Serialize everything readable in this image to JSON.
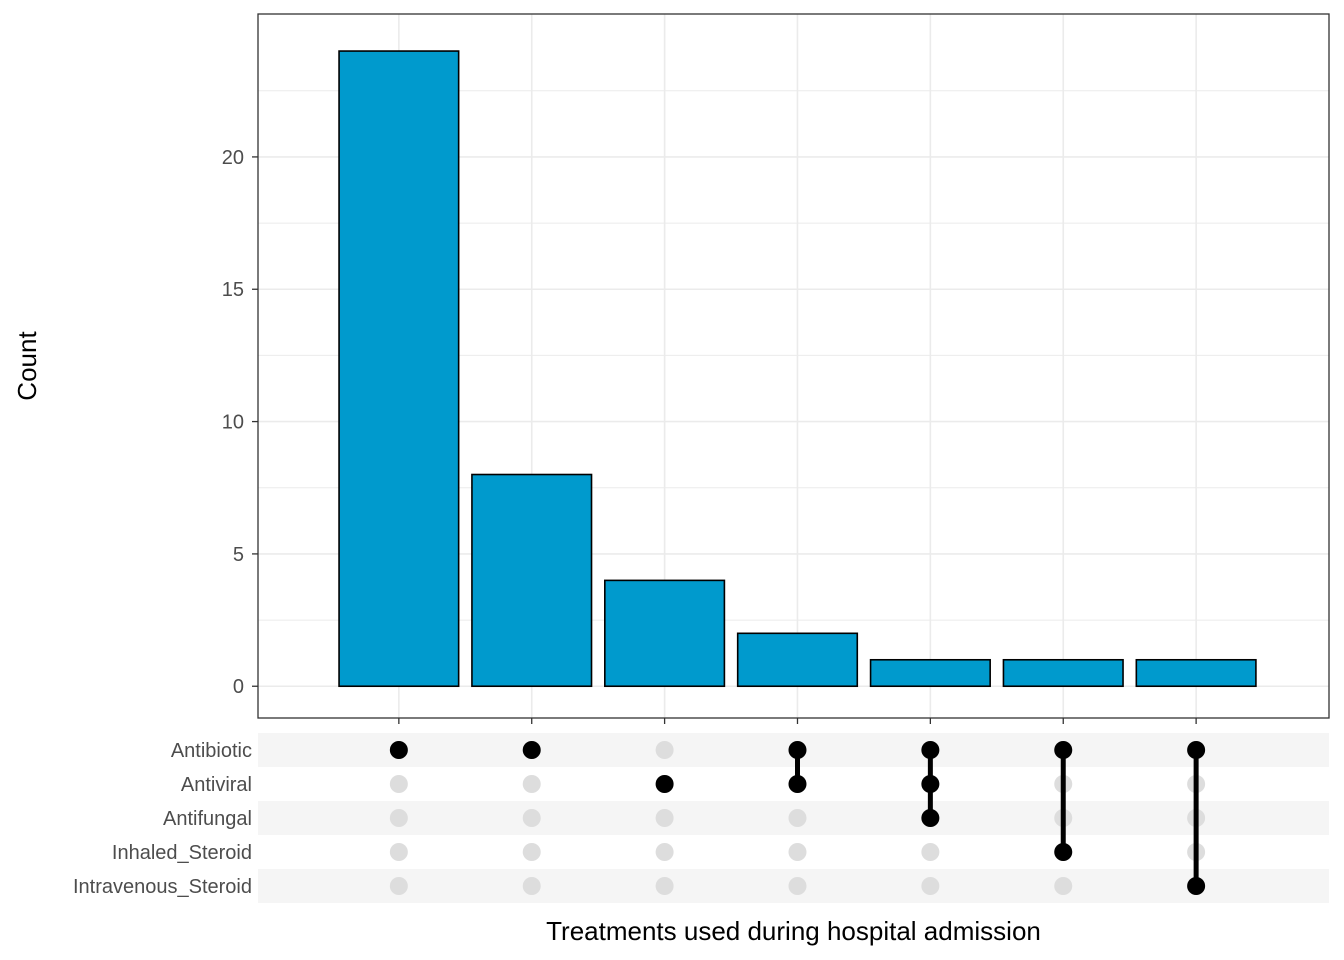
{
  "chart_data": {
    "type": "bar",
    "subtype": "upset",
    "title": "",
    "xlabel": "Treatments used during hospital admission",
    "ylabel": "Count",
    "ylim": [
      -1.2,
      25.4
    ],
    "yticks": [
      0,
      5,
      10,
      15,
      20
    ],
    "ytick_labels": [
      "0",
      "5",
      "10",
      "15",
      "20"
    ],
    "grid": true,
    "sets": [
      "Antibiotic",
      "Antiviral",
      "Antifungal",
      "Inhaled_Steroid",
      "Intravenous_Steroid"
    ],
    "intersections": [
      {
        "sets": [
          "Antibiotic"
        ],
        "count": 24
      },
      {
        "sets": [
          "Antibiotic"
        ],
        "count": 8
      },
      {
        "sets": [
          "Antiviral"
        ],
        "count": 4
      },
      {
        "sets": [
          "Antibiotic",
          "Antiviral"
        ],
        "count": 2
      },
      {
        "sets": [
          "Antibiotic",
          "Antiviral",
          "Antifungal"
        ],
        "count": 1
      },
      {
        "sets": [
          "Antibiotic",
          "Inhaled_Steroid"
        ],
        "count": 1
      },
      {
        "sets": [
          "Antibiotic",
          "Intravenous_Steroid"
        ],
        "count": 1
      }
    ],
    "values": [
      24,
      8,
      4,
      2,
      1,
      1,
      1
    ],
    "colors": {
      "bar_fill": "#009ACD",
      "bar_stroke": "#000000",
      "dot_active": "#000000",
      "dot_inactive": "#DDDDDD",
      "stripe": "#F5F5F5",
      "grid": "#EBEBEB",
      "panel_border": "#333333"
    }
  }
}
